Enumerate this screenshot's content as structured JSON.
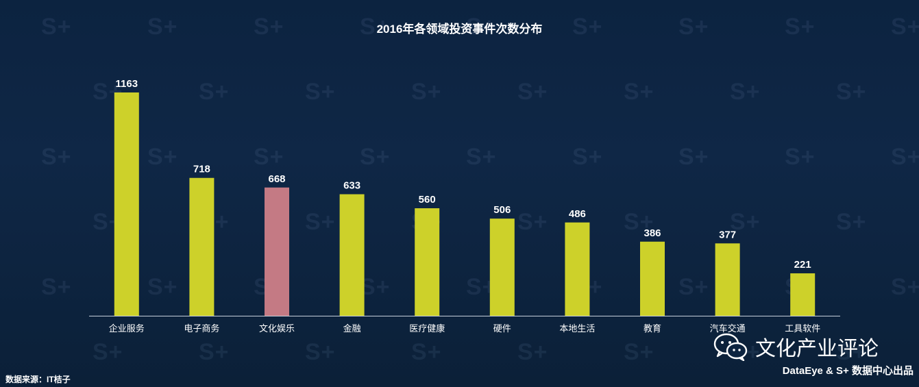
{
  "chart_data": {
    "type": "bar",
    "title": "2016年各领域投资事件次数分布",
    "categories": [
      "企业服务",
      "电子商务",
      "文化娱乐",
      "金融",
      "医疗健康",
      "硬件",
      "本地生活",
      "教育",
      "汽车交通",
      "工具软件"
    ],
    "values": [
      1163,
      718,
      668,
      633,
      560,
      506,
      486,
      386,
      377,
      221
    ],
    "ylim": [
      0,
      1163
    ],
    "grid": false,
    "colors": {
      "bar": "#cdd12a",
      "highlight": "#c47a84",
      "highlight_category": "文化娱乐",
      "label": "#ffffff",
      "axis": "#c8d0dc"
    }
  },
  "footer": {
    "source": "数据来源：IT桔子",
    "brand": "文化产业评论",
    "brand_icon": "wechat-icon",
    "credit": "DataEye & S+ 数据中心出品"
  },
  "background": {
    "watermark": "S+"
  }
}
